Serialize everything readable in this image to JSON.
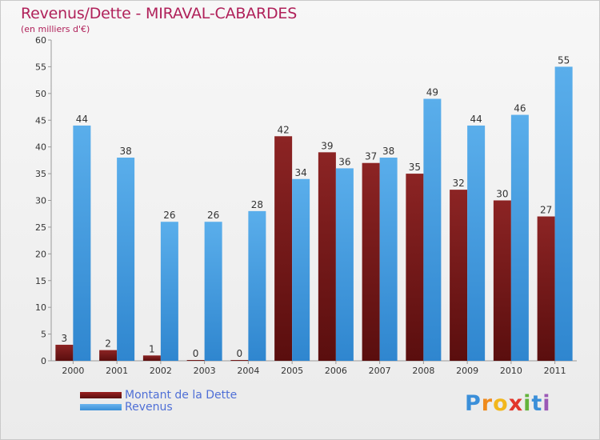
{
  "title": "Revenus/Dette - MIRAVAL-CABARDES",
  "subtitle": "(en milliers d'€)",
  "colors": {
    "title": "#b0215a",
    "dette": "#7a1616",
    "revenus": "#4aa0e4",
    "legend_text": "#4f6fd6"
  },
  "chart_data": {
    "type": "bar",
    "categories": [
      "2000",
      "2001",
      "2002",
      "2003",
      "2004",
      "2005",
      "2006",
      "2007",
      "2008",
      "2009",
      "2010",
      "2011"
    ],
    "series": [
      {
        "name": "Montant de la Dette",
        "values": [
          3,
          2,
          1,
          0,
          0,
          42,
          39,
          37,
          35,
          32,
          30,
          27
        ]
      },
      {
        "name": "Revenus",
        "values": [
          44,
          38,
          26,
          26,
          28,
          34,
          36,
          38,
          49,
          44,
          46,
          55
        ]
      }
    ],
    "ylim": [
      0,
      60
    ],
    "yticks": [
      0,
      5,
      10,
      15,
      20,
      25,
      30,
      35,
      40,
      45,
      50,
      55,
      60
    ],
    "grid": false,
    "legend_position": "bottom-left"
  },
  "legend": {
    "dette": "Montant de la Dette",
    "revenus": "Revenus"
  },
  "logo": {
    "text": "Proxiti",
    "letters": [
      "P",
      "r",
      "o",
      "x",
      "i",
      "t",
      "i"
    ],
    "letter_colors": [
      "#3b8fd9",
      "#ef8a1c",
      "#f2b71c",
      "#e2362b",
      "#63b33c",
      "#3b8fd9",
      "#9b59b6"
    ]
  }
}
